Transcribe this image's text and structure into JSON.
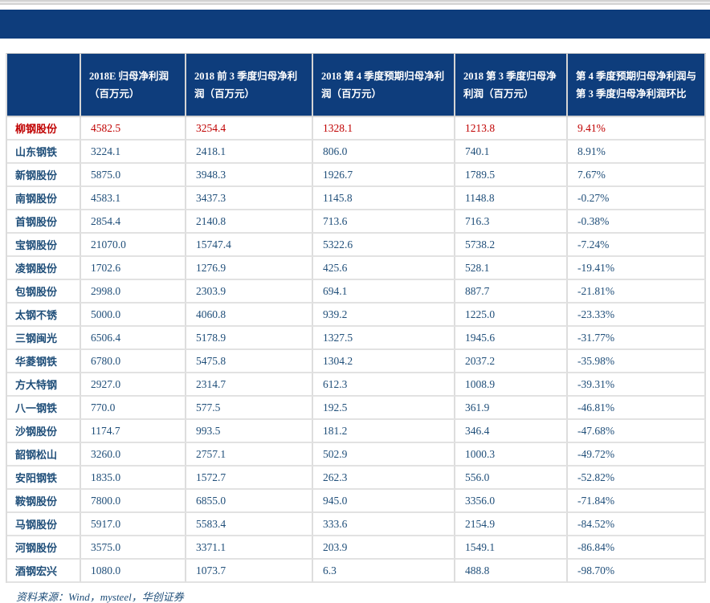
{
  "banner": {
    "color": "#0e3d7c"
  },
  "colors": {
    "header_bg": "#0e3d7c",
    "data_text": "#1f4e79",
    "highlight_text": "#c00000",
    "grid_line": "#dddddd"
  },
  "table": {
    "columns": [
      {
        "label": ""
      },
      {
        "label": "2018E 归母净利润（百万元）"
      },
      {
        "label": "2018 前 3 季度归母净利润（百万元）"
      },
      {
        "label": "2018 第 4 季度预期归母净利润（百万元）"
      },
      {
        "label": "2018 第 3 季度归母净利润（百万元）"
      },
      {
        "label": "第 4 季度预期归母净利润与第 3 季度归母净利润环比"
      }
    ],
    "rows": [
      {
        "name": "柳钢股份",
        "values": [
          "4582.5",
          "3254.4",
          "1328.1",
          "1213.8",
          "9.41%"
        ],
        "highlight": true
      },
      {
        "name": "山东钢铁",
        "values": [
          "3224.1",
          "2418.1",
          "806.0",
          "740.1",
          "8.91%"
        ],
        "highlight": false
      },
      {
        "name": "新钢股份",
        "values": [
          "5875.0",
          "3948.3",
          "1926.7",
          "1789.5",
          "7.67%"
        ],
        "highlight": false
      },
      {
        "name": "南钢股份",
        "values": [
          "4583.1",
          "3437.3",
          "1145.8",
          "1148.8",
          "-0.27%"
        ],
        "highlight": false
      },
      {
        "name": "首钢股份",
        "values": [
          "2854.4",
          "2140.8",
          "713.6",
          "716.3",
          "-0.38%"
        ],
        "highlight": false
      },
      {
        "name": "宝钢股份",
        "values": [
          "21070.0",
          "15747.4",
          "5322.6",
          "5738.2",
          "-7.24%"
        ],
        "highlight": false
      },
      {
        "name": "凌钢股份",
        "values": [
          "1702.6",
          "1276.9",
          "425.6",
          "528.1",
          "-19.41%"
        ],
        "highlight": false
      },
      {
        "name": "包钢股份",
        "values": [
          "2998.0",
          "2303.9",
          "694.1",
          "887.7",
          "-21.81%"
        ],
        "highlight": false
      },
      {
        "name": "太钢不锈",
        "values": [
          "5000.0",
          "4060.8",
          "939.2",
          "1225.0",
          "-23.33%"
        ],
        "highlight": false
      },
      {
        "name": "三钢闽光",
        "values": [
          "6506.4",
          "5178.9",
          "1327.5",
          "1945.6",
          "-31.77%"
        ],
        "highlight": false
      },
      {
        "name": "华菱钢铁",
        "values": [
          "6780.0",
          "5475.8",
          "1304.2",
          "2037.2",
          "-35.98%"
        ],
        "highlight": false
      },
      {
        "name": "方大特钢",
        "values": [
          "2927.0",
          "2314.7",
          "612.3",
          "1008.9",
          "-39.31%"
        ],
        "highlight": false
      },
      {
        "name": "八一钢铁",
        "values": [
          "770.0",
          "577.5",
          "192.5",
          "361.9",
          "-46.81%"
        ],
        "highlight": false
      },
      {
        "name": "沙钢股份",
        "values": [
          "1174.7",
          "993.5",
          "181.2",
          "346.4",
          "-47.68%"
        ],
        "highlight": false
      },
      {
        "name": "韶钢松山",
        "values": [
          "3260.0",
          "2757.1",
          "502.9",
          "1000.3",
          "-49.72%"
        ],
        "highlight": false
      },
      {
        "name": "安阳钢铁",
        "values": [
          "1835.0",
          "1572.7",
          "262.3",
          "556.0",
          "-52.82%"
        ],
        "highlight": false
      },
      {
        "name": "鞍钢股份",
        "values": [
          "7800.0",
          "6855.0",
          "945.0",
          "3356.0",
          "-71.84%"
        ],
        "highlight": false
      },
      {
        "name": "马钢股份",
        "values": [
          "5917.0",
          "5583.4",
          "333.6",
          "2154.9",
          "-84.52%"
        ],
        "highlight": false
      },
      {
        "name": "河钢股份",
        "values": [
          "3575.0",
          "3371.1",
          "203.9",
          "1549.1",
          "-86.84%"
        ],
        "highlight": false
      },
      {
        "name": "酒钢宏兴",
        "values": [
          "1080.0",
          "1073.7",
          "6.3",
          "488.8",
          "-98.70%"
        ],
        "highlight": false
      }
    ]
  },
  "footer": {
    "source_note": "资料来源：Wind，mysteel，华创证券"
  }
}
